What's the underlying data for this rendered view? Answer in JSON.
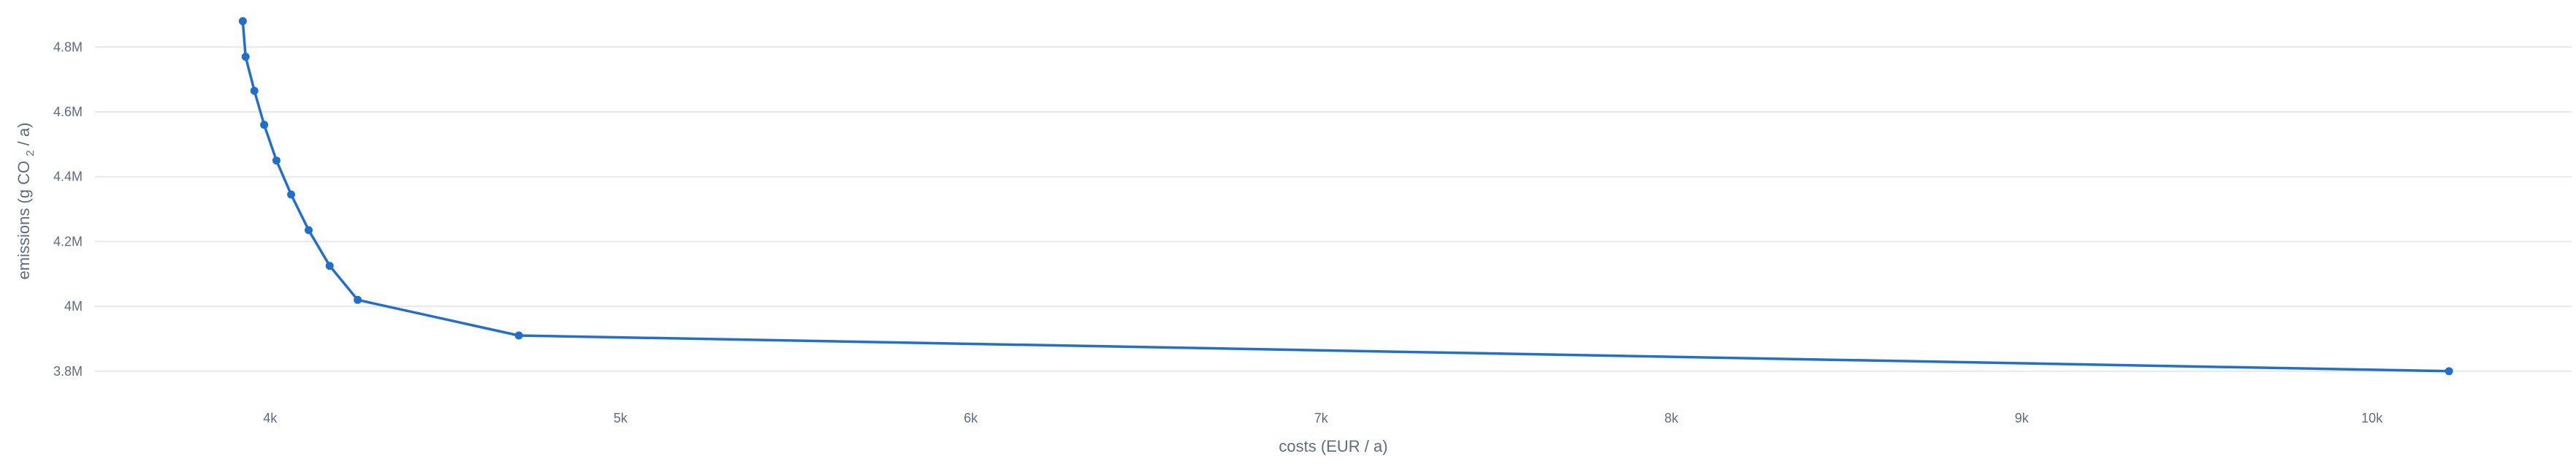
{
  "chart_data": {
    "type": "line",
    "title": "",
    "xlabel": "costs (EUR / a)",
    "ylabel": {
      "prefix": "emissions (g CO",
      "subscript": "2",
      "suffix": " / a)"
    },
    "xlim": [
      3500,
      10570
    ],
    "ylim": [
      3.75,
      4.9
    ],
    "x_ticks": [
      {
        "value": 4000,
        "label": "4k"
      },
      {
        "value": 5000,
        "label": "5k"
      },
      {
        "value": 6000,
        "label": "6k"
      },
      {
        "value": 7000,
        "label": "7k"
      },
      {
        "value": 8000,
        "label": "8k"
      },
      {
        "value": 9000,
        "label": "9k"
      },
      {
        "value": 10000,
        "label": "10k"
      }
    ],
    "y_ticks": [
      {
        "value": 3.8,
        "label": "3.8M"
      },
      {
        "value": 4.0,
        "label": "4M"
      },
      {
        "value": 4.2,
        "label": "4.2M"
      },
      {
        "value": 4.4,
        "label": "4.4M"
      },
      {
        "value": 4.6,
        "label": "4.6M"
      },
      {
        "value": 4.8,
        "label": "4.8M"
      }
    ],
    "grid": true,
    "legend": "none",
    "series": [
      {
        "color": "#1f6fd1",
        "x": [
          3922,
          3930,
          3955,
          3983,
          4018,
          4060,
          4110,
          4170,
          4250,
          4710,
          10220
        ],
        "y": [
          4.88,
          4.77,
          4.665,
          4.56,
          4.45,
          4.345,
          4.235,
          4.125,
          4.02,
          3.91,
          3.8
        ]
      }
    ]
  },
  "colors": {
    "line": "#1f6fd1",
    "grid": "#e6e8ee",
    "text": "#5f6b82"
  }
}
